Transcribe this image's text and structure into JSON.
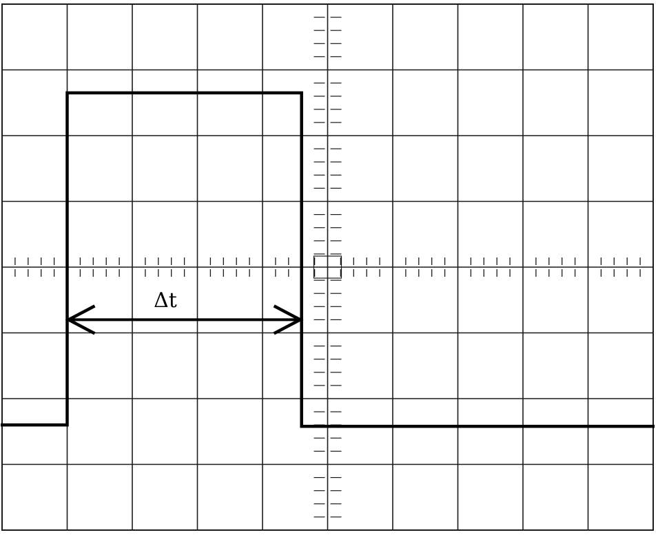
{
  "annotation": {
    "label": "Δt"
  },
  "screen": {
    "major_divisions_x": 10,
    "major_divisions_y": 8,
    "minor_ticks_per_division": 5
  },
  "pulse": {
    "start_div": 1.0,
    "end_div": 4.6,
    "high_level_div": 1.35,
    "low_level_div": 6.4
  },
  "colors": {
    "grid": "#1a1a1a",
    "trace": "#000000",
    "background": "#ffffff"
  }
}
